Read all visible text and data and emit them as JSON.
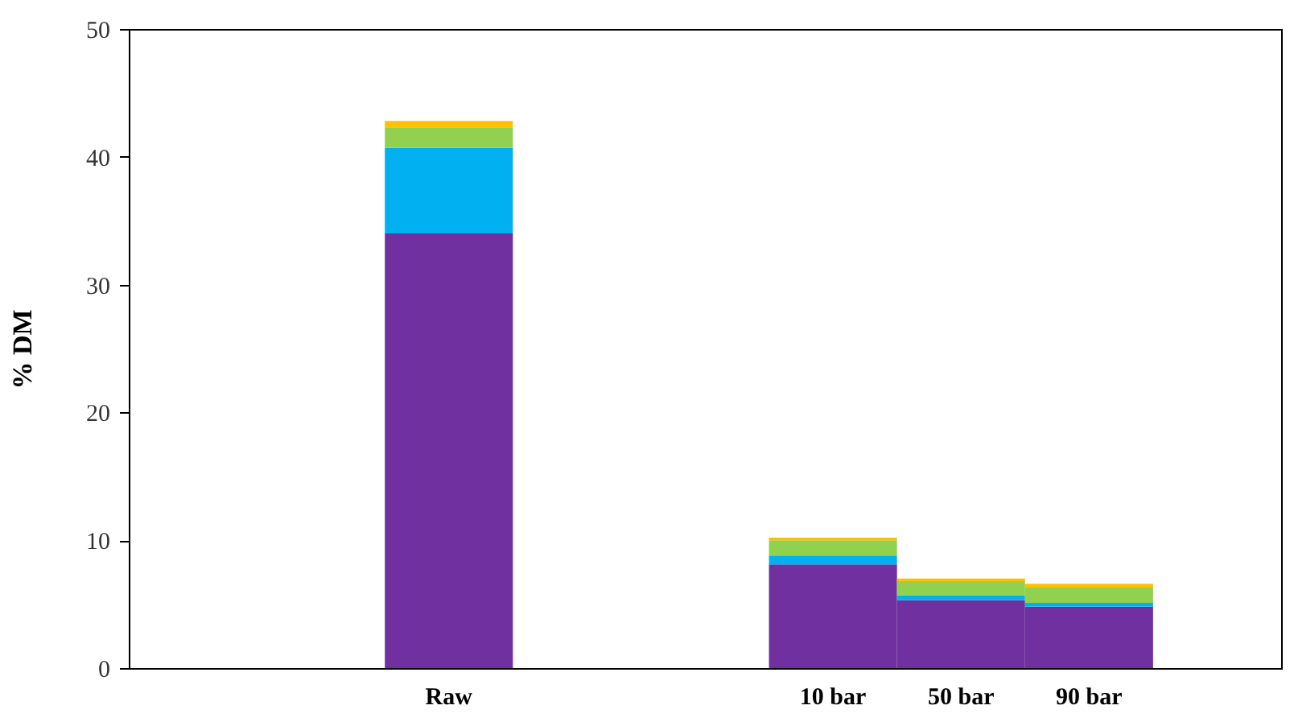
{
  "chart_data": {
    "type": "bar",
    "ylabel": "% DM",
    "stacked": true,
    "categories": [
      null,
      null,
      "Raw",
      null,
      null,
      "10 bar",
      "50 bar",
      "90 bar",
      null
    ],
    "series": [
      {
        "color": "#7030a0",
        "values": [
          null,
          null,
          34.0,
          null,
          null,
          8.1,
          5.3,
          4.8,
          null
        ]
      },
      {
        "color": "#00b0f0",
        "values": [
          null,
          null,
          6.7,
          null,
          null,
          0.7,
          0.4,
          0.3,
          null
        ]
      },
      {
        "color": "#92d050",
        "values": [
          null,
          null,
          1.6,
          null,
          null,
          1.2,
          1.1,
          1.2,
          null
        ]
      },
      {
        "color": "#ffc000",
        "values": [
          null,
          null,
          0.5,
          null,
          null,
          0.2,
          0.2,
          0.3,
          null
        ]
      }
    ],
    "ylim": [
      0,
      50
    ],
    "yticks": [
      0,
      10,
      20,
      30,
      40,
      50
    ],
    "grid": false
  }
}
